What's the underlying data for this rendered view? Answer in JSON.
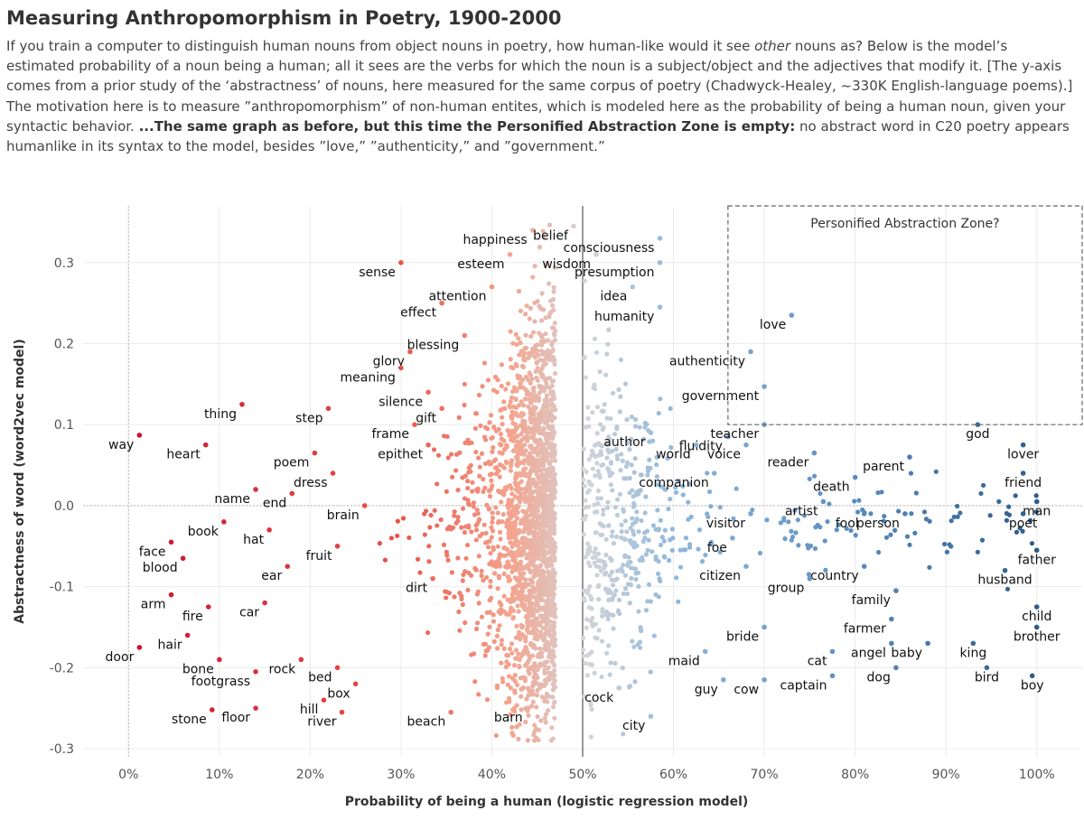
{
  "header": {
    "title": "Measuring Anthropomorphism in Poetry, 1900-2000",
    "desc_part1": "If you train a computer to distinguish human nouns from object nouns in poetry, how human-like would it see ",
    "desc_em": "other",
    "desc_part2": " nouns as? Below is the model’s estimated probability of a noun being a human; all it sees are the verbs for which the noun is a subject/object and the adjectives that modify it. [The y-axis comes from a prior study of the ‘abstractness’ of nouns, here measured for the same corpus of poetry (Chadwyck-Healey, ~330K English-language poems).] The motivation here is to measure ”anthropomorphism” of non-human entites, which is modeled here as the probability of being a human noun, given your syntactic behavior. ",
    "desc_bold": "...The same graph as before, but this time the Personified Abstraction Zone is empty:",
    "desc_part3": " no abstract word in C20 poetry appears humanlike in its syntax to the model, besides ”love,” ”authenticity,” and ”government.”"
  },
  "chart_data": {
    "type": "scatter",
    "xlabel": "Probability of being a human (logistic regression model)",
    "ylabel": "Abstractness of word (word2vec model)",
    "xlim": [
      -0.05,
      1.05
    ],
    "ylim": [
      -0.31,
      0.37
    ],
    "x_ticks": [
      0,
      0.1,
      0.2,
      0.3,
      0.4,
      0.5,
      0.6,
      0.7,
      0.8,
      0.9,
      1.0
    ],
    "x_tick_labels": [
      "0%",
      "10%",
      "20%",
      "30%",
      "40%",
      "50%",
      "60%",
      "70%",
      "80%",
      "90%",
      "100%"
    ],
    "y_ticks": [
      0.3,
      0.2,
      0.1,
      0.0,
      -0.1,
      -0.2,
      -0.3
    ],
    "y_tick_labels": [
      "0.3",
      "0.2",
      "0.1",
      "0.0",
      "-0.1",
      "-0.2",
      "-0.3"
    ],
    "grid": true,
    "reference_line_x": 0.5,
    "zero_line_y": 0,
    "zero_line_x": 0,
    "annotation": {
      "text": "Personified Abstraction Zone?",
      "x_range": [
        0.66,
        1.05
      ],
      "y_range": [
        0.1,
        0.37
      ]
    },
    "color_scale": {
      "low": "#c8102e",
      "mid_low": "#f4a38d",
      "mid": "#d5d5d8",
      "mid_high": "#8fb8dc",
      "high": "#2e5b8a"
    },
    "labeled_points": [
      {
        "word": "happiness",
        "x": 0.445,
        "y": 0.34
      },
      {
        "word": "belief",
        "x": 0.49,
        "y": 0.345
      },
      {
        "word": "esteem",
        "x": 0.42,
        "y": 0.31
      },
      {
        "word": "wisdom",
        "x": 0.515,
        "y": 0.31
      },
      {
        "word": "consciousness",
        "x": 0.585,
        "y": 0.33
      },
      {
        "word": "presumption",
        "x": 0.585,
        "y": 0.3
      },
      {
        "word": "sense",
        "x": 0.3,
        "y": 0.3
      },
      {
        "word": "attention",
        "x": 0.4,
        "y": 0.27
      },
      {
        "word": "idea",
        "x": 0.555,
        "y": 0.27
      },
      {
        "word": "effect",
        "x": 0.345,
        "y": 0.25
      },
      {
        "word": "humanity",
        "x": 0.585,
        "y": 0.245
      },
      {
        "word": "love",
        "x": 0.73,
        "y": 0.235
      },
      {
        "word": "blessing",
        "x": 0.37,
        "y": 0.21
      },
      {
        "word": "authenticity",
        "x": 0.685,
        "y": 0.19
      },
      {
        "word": "glory",
        "x": 0.31,
        "y": 0.19
      },
      {
        "word": "meaning",
        "x": 0.3,
        "y": 0.17
      },
      {
        "word": "government",
        "x": 0.7,
        "y": 0.147
      },
      {
        "word": "silence",
        "x": 0.33,
        "y": 0.14
      },
      {
        "word": "step",
        "x": 0.22,
        "y": 0.12
      },
      {
        "word": "gift",
        "x": 0.345,
        "y": 0.12
      },
      {
        "word": "thing",
        "x": 0.125,
        "y": 0.125
      },
      {
        "word": "frame",
        "x": 0.315,
        "y": 0.1
      },
      {
        "word": "author",
        "x": 0.575,
        "y": 0.09
      },
      {
        "word": "fluidity",
        "x": 0.66,
        "y": 0.085
      },
      {
        "word": "teacher",
        "x": 0.7,
        "y": 0.1
      },
      {
        "word": "way",
        "x": 0.012,
        "y": 0.087
      },
      {
        "word": "epithet",
        "x": 0.33,
        "y": 0.075
      },
      {
        "word": "world",
        "x": 0.625,
        "y": 0.075
      },
      {
        "word": "voice",
        "x": 0.68,
        "y": 0.075
      },
      {
        "word": "heart",
        "x": 0.085,
        "y": 0.075
      },
      {
        "word": "god",
        "x": 0.935,
        "y": 0.1
      },
      {
        "word": "lover",
        "x": 0.985,
        "y": 0.075
      },
      {
        "word": "poem",
        "x": 0.205,
        "y": 0.065
      },
      {
        "word": "reader",
        "x": 0.755,
        "y": 0.065
      },
      {
        "word": "parent",
        "x": 0.86,
        "y": 0.06
      },
      {
        "word": "dress",
        "x": 0.225,
        "y": 0.04
      },
      {
        "word": "companion",
        "x": 0.645,
        "y": 0.04
      },
      {
        "word": "death",
        "x": 0.8,
        "y": 0.035
      },
      {
        "word": "friend",
        "x": 0.985,
        "y": 0.04
      },
      {
        "word": "name",
        "x": 0.14,
        "y": 0.02
      },
      {
        "word": "end",
        "x": 0.18,
        "y": 0.015
      },
      {
        "word": "man",
        "x": 1.0,
        "y": 0.005
      },
      {
        "word": "brain",
        "x": 0.26,
        "y": 0.0
      },
      {
        "word": "artist",
        "x": 0.765,
        "y": 0.005
      },
      {
        "word": "visitor",
        "x": 0.685,
        "y": -0.01
      },
      {
        "word": "fool",
        "x": 0.81,
        "y": -0.01
      },
      {
        "word": "person",
        "x": 0.855,
        "y": -0.01
      },
      {
        "word": "poet",
        "x": 0.985,
        "y": -0.01
      },
      {
        "word": "book",
        "x": 0.105,
        "y": -0.02
      },
      {
        "word": "hat",
        "x": 0.155,
        "y": -0.03
      },
      {
        "word": "face",
        "x": 0.047,
        "y": -0.045
      },
      {
        "word": "foe",
        "x": 0.665,
        "y": -0.04
      },
      {
        "word": "fruit",
        "x": 0.23,
        "y": -0.05
      },
      {
        "word": "country",
        "x": 0.81,
        "y": -0.075
      },
      {
        "word": "father",
        "x": 1.0,
        "y": -0.055
      },
      {
        "word": "ear",
        "x": 0.175,
        "y": -0.075
      },
      {
        "word": "blood",
        "x": 0.06,
        "y": -0.065
      },
      {
        "word": "citizen",
        "x": 0.68,
        "y": -0.075
      },
      {
        "word": "husband",
        "x": 0.965,
        "y": -0.08
      },
      {
        "word": "dirt",
        "x": 0.335,
        "y": -0.09
      },
      {
        "word": "group",
        "x": 0.75,
        "y": -0.09
      },
      {
        "word": "family",
        "x": 0.845,
        "y": -0.105
      },
      {
        "word": "arm",
        "x": 0.047,
        "y": -0.11
      },
      {
        "word": "car",
        "x": 0.15,
        "y": -0.12
      },
      {
        "word": "fire",
        "x": 0.088,
        "y": -0.125
      },
      {
        "word": "farmer",
        "x": 0.84,
        "y": -0.14
      },
      {
        "word": "child",
        "x": 1.0,
        "y": -0.125
      },
      {
        "word": "bride",
        "x": 0.7,
        "y": -0.15
      },
      {
        "word": "hair",
        "x": 0.065,
        "y": -0.16
      },
      {
        "word": "king",
        "x": 0.93,
        "y": -0.17
      },
      {
        "word": "brother",
        "x": 1.0,
        "y": -0.15
      },
      {
        "word": "angel",
        "x": 0.84,
        "y": -0.17
      },
      {
        "word": "baby",
        "x": 0.88,
        "y": -0.17
      },
      {
        "word": "bone",
        "x": 0.1,
        "y": -0.19
      },
      {
        "word": "cat",
        "x": 0.775,
        "y": -0.18
      },
      {
        "word": "rock",
        "x": 0.19,
        "y": -0.19
      },
      {
        "word": "maid",
        "x": 0.635,
        "y": -0.18
      },
      {
        "word": "door",
        "x": 0.012,
        "y": -0.175
      },
      {
        "word": "bed",
        "x": 0.23,
        "y": -0.2
      },
      {
        "word": "footgrass",
        "x": 0.14,
        "y": -0.205
      },
      {
        "word": "dog",
        "x": 0.845,
        "y": -0.2
      },
      {
        "word": "bird",
        "x": 0.945,
        "y": -0.2
      },
      {
        "word": "boy",
        "x": 0.995,
        "y": -0.21
      },
      {
        "word": "box",
        "x": 0.25,
        "y": -0.22
      },
      {
        "word": "guy",
        "x": 0.655,
        "y": -0.215
      },
      {
        "word": "cow",
        "x": 0.7,
        "y": -0.215
      },
      {
        "word": "captain",
        "x": 0.775,
        "y": -0.21
      },
      {
        "word": "hill",
        "x": 0.215,
        "y": -0.24
      },
      {
        "word": "stone",
        "x": 0.092,
        "y": -0.252
      },
      {
        "word": "river",
        "x": 0.235,
        "y": -0.255
      },
      {
        "word": "floor",
        "x": 0.14,
        "y": -0.25
      },
      {
        "word": "cock",
        "x": 0.54,
        "y": -0.225
      },
      {
        "word": "city",
        "x": 0.575,
        "y": -0.26
      },
      {
        "word": "barn",
        "x": 0.44,
        "y": -0.25
      },
      {
        "word": "beach",
        "x": 0.355,
        "y": -0.255
      }
    ]
  }
}
